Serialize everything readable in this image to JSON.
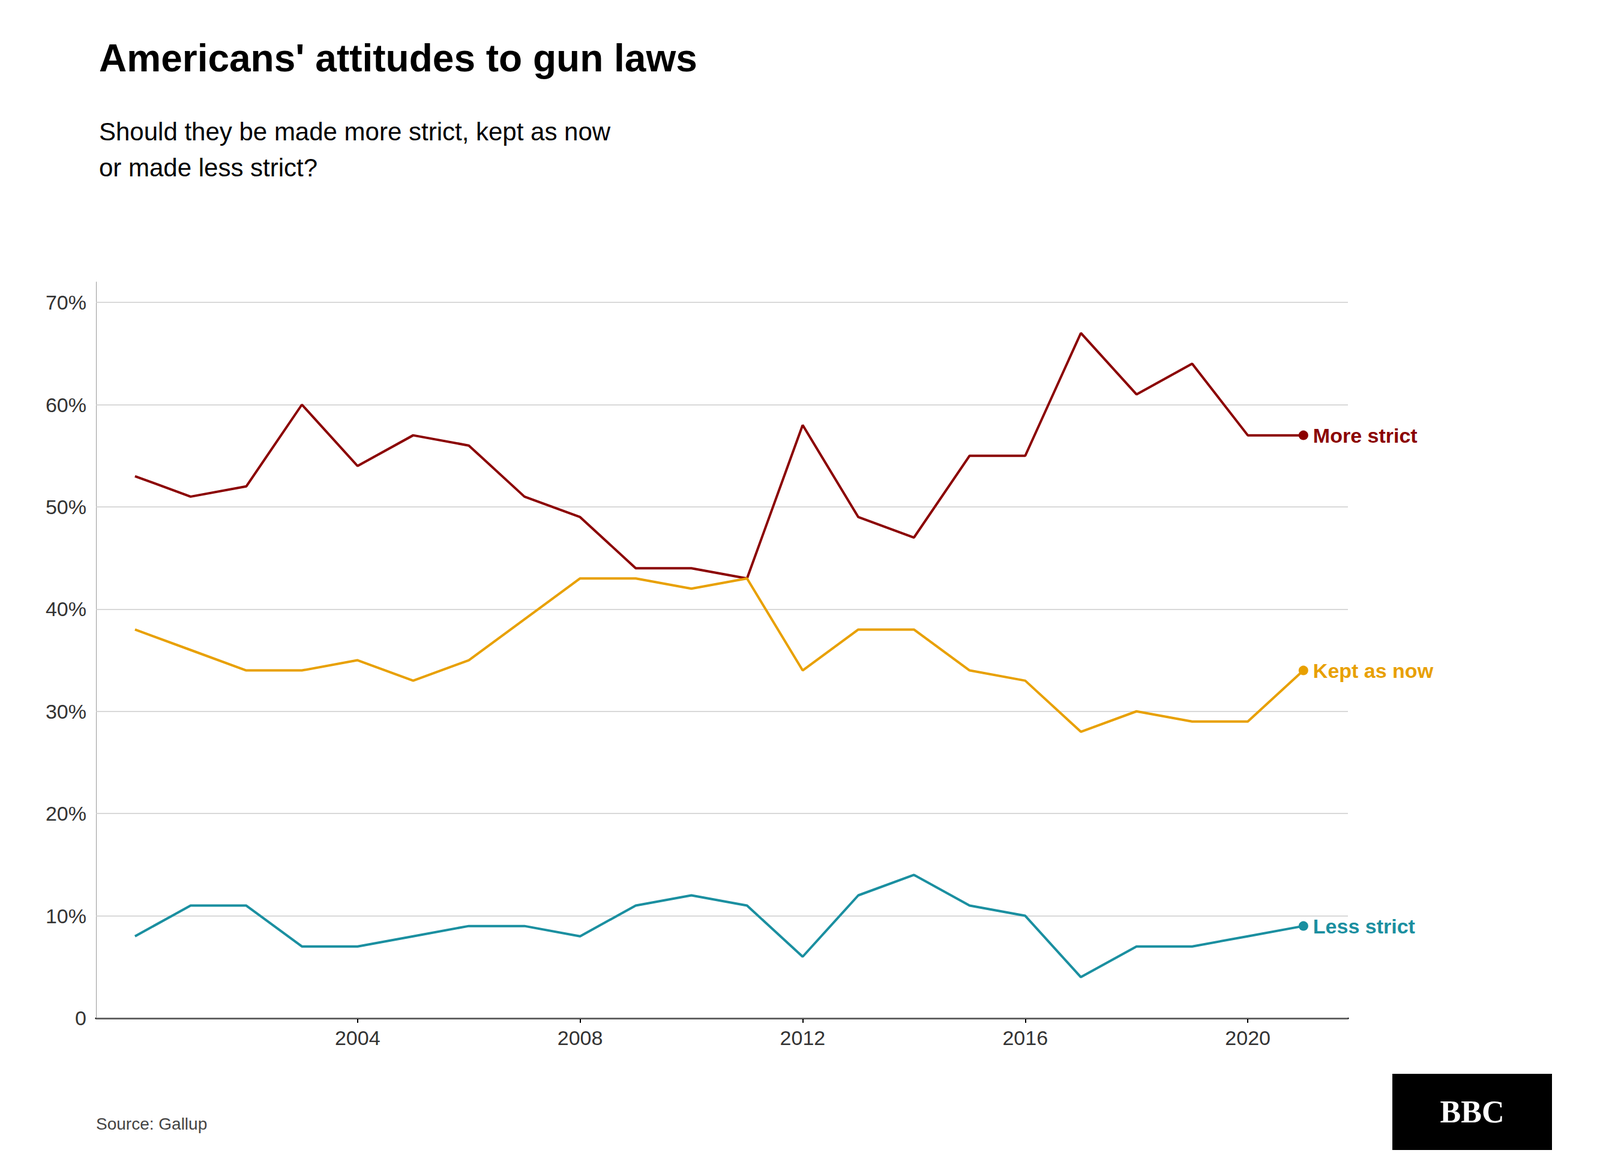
{
  "chart_data": {
    "type": "line",
    "title": "Americans' attitudes to gun laws",
    "subtitle": "Should they be made more strict, kept as now\nor made less strict?",
    "source": "Source: Gallup",
    "annotations": [
      "BBC"
    ],
    "x": [
      2000,
      2001,
      2002,
      2003,
      2004,
      2005,
      2006,
      2007,
      2008,
      2009,
      2010,
      2011,
      2012,
      2013,
      2014,
      2015,
      2016,
      2017,
      2018,
      2019,
      2020,
      2021
    ],
    "series": [
      {
        "name": "More strict",
        "color": "#8B0000",
        "values": [
          53,
          51,
          52,
          60,
          54,
          57,
          56,
          51,
          49,
          44,
          44,
          43,
          58,
          49,
          47,
          55,
          55,
          67,
          61,
          64,
          57,
          57
        ]
      },
      {
        "name": "Kept as now",
        "color": "#E8A000",
        "values": [
          38,
          36,
          34,
          34,
          35,
          33,
          35,
          39,
          43,
          43,
          42,
          43,
          34,
          38,
          38,
          34,
          33,
          28,
          30,
          29,
          29,
          34
        ]
      },
      {
        "name": "Less strict",
        "color": "#1A8FA0",
        "values": [
          8,
          11,
          11,
          7,
          7,
          8,
          9,
          9,
          8,
          11,
          12,
          11,
          6,
          12,
          14,
          11,
          10,
          4,
          7,
          7,
          8,
          9
        ]
      }
    ],
    "xlim": [
      1999.3,
      2021.8
    ],
    "xticks": [
      2004,
      2008,
      2012,
      2016,
      2020
    ],
    "ylim": [
      0,
      72
    ],
    "yticks": [
      0,
      {
        "value": 10,
        "label": "10%"
      },
      {
        "value": 20,
        "label": "20%"
      },
      {
        "value": 30,
        "label": "30%"
      },
      {
        "value": 40,
        "label": "40%"
      },
      {
        "value": 50,
        "label": "50%"
      },
      {
        "value": 60,
        "label": "60%"
      },
      {
        "value": 70,
        "label": "70%"
      }
    ],
    "grid": true
  }
}
